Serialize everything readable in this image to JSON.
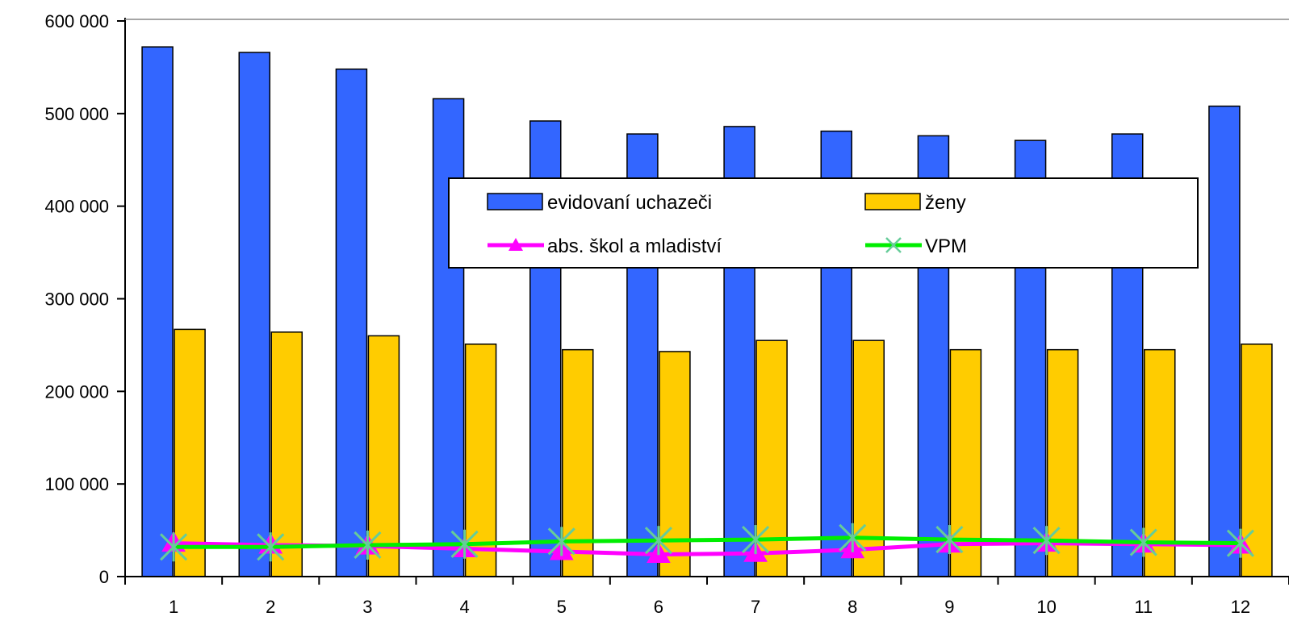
{
  "chart_data": {
    "type": "bar",
    "title": "",
    "xlabel": "",
    "ylabel": "",
    "categories": [
      "1",
      "2",
      "3",
      "4",
      "5",
      "6",
      "7",
      "8",
      "9",
      "10",
      "11",
      "12"
    ],
    "ylim": [
      0,
      600000
    ],
    "yticks": [
      0,
      100000,
      200000,
      300000,
      400000,
      500000,
      600000
    ],
    "ytick_labels": [
      "0",
      "100 000",
      "200 000",
      "300 000",
      "400 000",
      "500 000",
      "600 000"
    ],
    "grid": false,
    "legend_position": "center-right",
    "series": [
      {
        "name": "evidovaní uchazeči",
        "kind": "bar",
        "color": "#3366ff",
        "values": [
          572000,
          566000,
          548000,
          516000,
          492000,
          478000,
          486000,
          481000,
          476000,
          471000,
          478000,
          508000
        ]
      },
      {
        "name": "ženy",
        "kind": "bar",
        "color": "#ffcc00",
        "values": [
          267000,
          264000,
          260000,
          251000,
          245000,
          243000,
          255000,
          255000,
          245000,
          245000,
          245000,
          251000
        ]
      },
      {
        "name": "abs. škol a mladiství",
        "kind": "line",
        "marker": "triangle",
        "color": "#ff00ff",
        "values": [
          36000,
          34000,
          33000,
          30000,
          27000,
          24000,
          25000,
          29000,
          35000,
          36000,
          35000,
          34000
        ]
      },
      {
        "name": "VPM",
        "kind": "line",
        "marker": "x",
        "color": "#00ee00",
        "values": [
          32000,
          32000,
          34000,
          35000,
          38000,
          39000,
          40000,
          42000,
          40000,
          39000,
          37000,
          36000
        ]
      }
    ]
  }
}
